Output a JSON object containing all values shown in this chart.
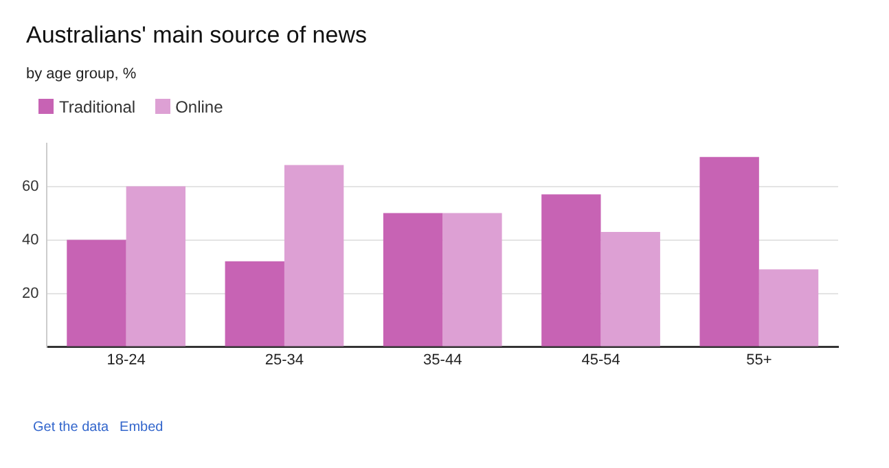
{
  "chart_data": {
    "type": "bar",
    "title": "Australians' main source of news",
    "subtitle": "by age group, %",
    "categories": [
      "18-24",
      "25-34",
      "35-44",
      "45-54",
      "55+"
    ],
    "series": [
      {
        "name": "Traditional",
        "color": "#c763b4",
        "values": [
          40,
          32,
          50,
          57,
          71
        ]
      },
      {
        "name": "Online",
        "color": "#dda0d4",
        "values": [
          60,
          68,
          50,
          43,
          29
        ]
      }
    ],
    "ylim": [
      0,
      76
    ],
    "yticks": [
      {
        "value": 0,
        "label": null
      },
      20,
      40,
      60
    ],
    "grid": "y",
    "legend": "top left",
    "annotations": [
      "Get the data",
      "Embed"
    ]
  }
}
